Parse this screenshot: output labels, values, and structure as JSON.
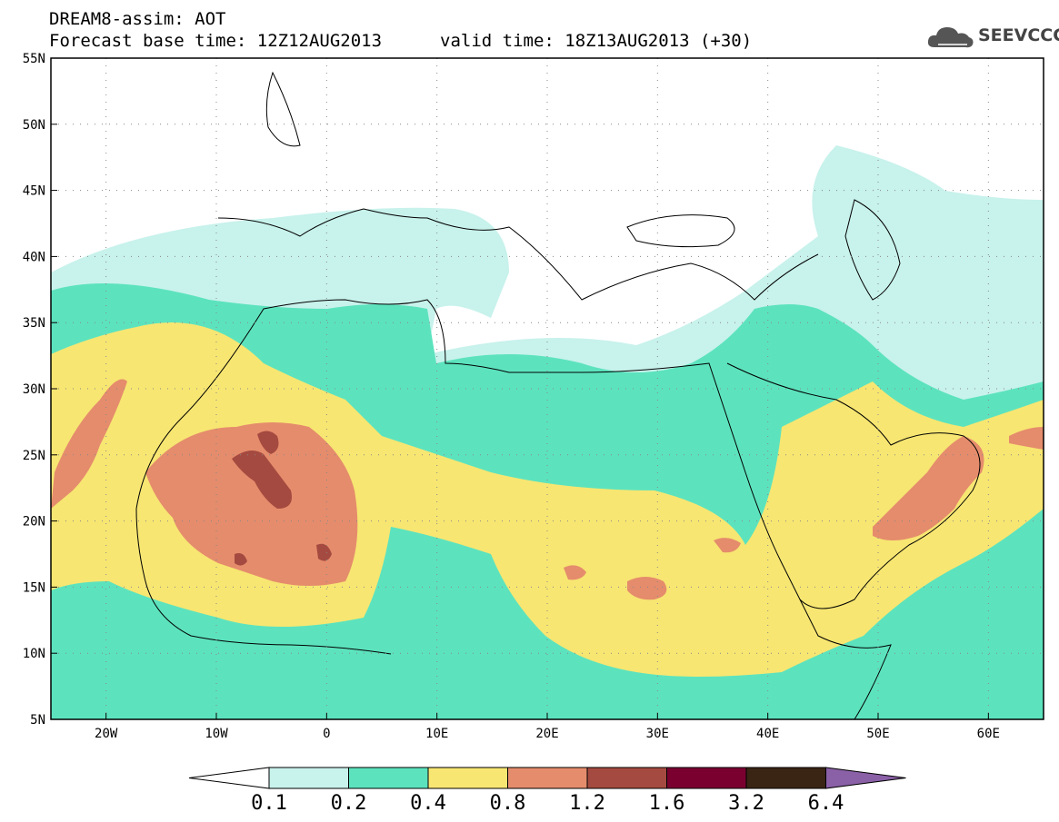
{
  "header": {
    "title": "DREAM8-assim: AOT",
    "base_time": "Forecast base time: 12Z12AUG2013",
    "valid_time": "valid time: 18Z13AUG2013 (+30)"
  },
  "logo": {
    "text": "SEEVCCC",
    "icon": "cloud-icon"
  },
  "map": {
    "lon_range": [
      -25,
      65
    ],
    "lat_range": [
      5,
      55
    ],
    "lon_ticks": [
      "20W",
      "10W",
      "0",
      "10E",
      "20E",
      "30E",
      "40E",
      "50E",
      "60E"
    ],
    "lat_ticks": [
      "5N",
      "10N",
      "15N",
      "20N",
      "25N",
      "30N",
      "35N",
      "40N",
      "45N",
      "50N",
      "55N"
    ],
    "grid": "dotted"
  },
  "colorbar": {
    "levels": [
      "0.1",
      "0.2",
      "0.4",
      "0.8",
      "1.2",
      "1.6",
      "3.2",
      "6.4"
    ],
    "colors": [
      "#ffffff",
      "#c8f2ec",
      "#5ce3be",
      "#f7e672",
      "#e58c6c",
      "#a54a40",
      "#7a0030",
      "#3a2414",
      "#8a60a6"
    ]
  }
}
